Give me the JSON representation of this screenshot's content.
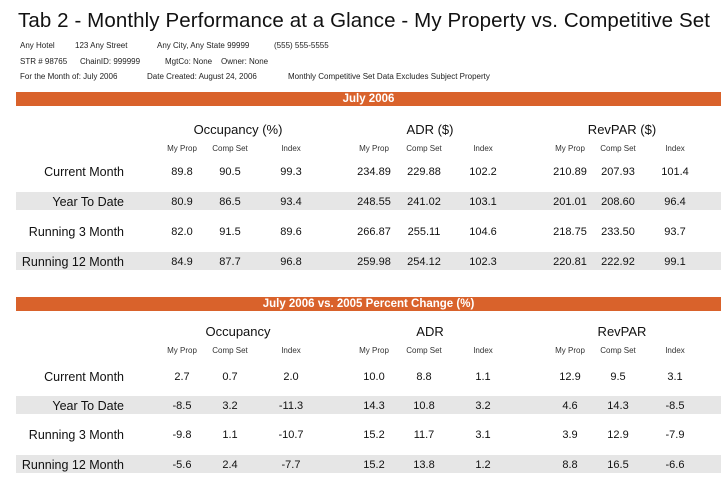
{
  "title": "Tab 2 - Monthly Performance at a Glance - My Property vs. Competitive Set",
  "info": {
    "line1": [
      "Any Hotel",
      "123 Any Street",
      "Any City, Any State  99999",
      "(555) 555-5555"
    ],
    "line2": [
      "STR # 98765",
      "ChainID: 999999",
      "MgtCo: None",
      "Owner: None"
    ],
    "line3": [
      "For the Month of: July 2006",
      "Date Created: August 24, 2006",
      "Monthly Competitive Set Data Excludes Subject Property"
    ]
  },
  "colors": {
    "banner": "#d9622b",
    "band": "#e6e6e6"
  },
  "sections": [
    {
      "banner": "July 2006",
      "groups": [
        "Occupancy (%)",
        "ADR ($)",
        "RevPAR ($)"
      ],
      "subheaders": [
        "My Prop",
        "Comp Set",
        "Index"
      ],
      "rows": [
        {
          "label": "Current Month",
          "values": [
            "89.8",
            "90.5",
            "99.3",
            "234.89",
            "229.88",
            "102.2",
            "210.89",
            "207.93",
            "101.4"
          ]
        },
        {
          "label": "Year To Date",
          "values": [
            "80.9",
            "86.5",
            "93.4",
            "248.55",
            "241.02",
            "103.1",
            "201.01",
            "208.60",
            "96.4"
          ]
        },
        {
          "label": "Running 3 Month",
          "values": [
            "82.0",
            "91.5",
            "89.6",
            "266.87",
            "255.11",
            "104.6",
            "218.75",
            "233.50",
            "93.7"
          ]
        },
        {
          "label": "Running 12 Month",
          "values": [
            "84.9",
            "87.7",
            "96.8",
            "259.98",
            "254.12",
            "102.3",
            "220.81",
            "222.92",
            "99.1"
          ]
        }
      ]
    },
    {
      "banner": "July 2006 vs. 2005 Percent Change (%)",
      "groups": [
        "Occupancy",
        "ADR",
        "RevPAR"
      ],
      "subheaders": [
        "My Prop",
        "Comp Set",
        "Index"
      ],
      "rows": [
        {
          "label": "Current Month",
          "values": [
            "2.7",
            "0.7",
            "2.0",
            "10.0",
            "8.8",
            "1.1",
            "12.9",
            "9.5",
            "3.1"
          ]
        },
        {
          "label": "Year To Date",
          "values": [
            "-8.5",
            "3.2",
            "-11.3",
            "14.3",
            "10.8",
            "3.2",
            "4.6",
            "14.3",
            "-8.5"
          ]
        },
        {
          "label": "Running 3 Month",
          "values": [
            "-9.8",
            "1.1",
            "-10.7",
            "15.2",
            "11.7",
            "3.1",
            "3.9",
            "12.9",
            "-7.9"
          ]
        },
        {
          "label": "Running 12 Month",
          "values": [
            "-5.6",
            "2.4",
            "-7.7",
            "15.2",
            "13.8",
            "1.2",
            "8.8",
            "16.5",
            "-6.6"
          ]
        }
      ]
    }
  ]
}
